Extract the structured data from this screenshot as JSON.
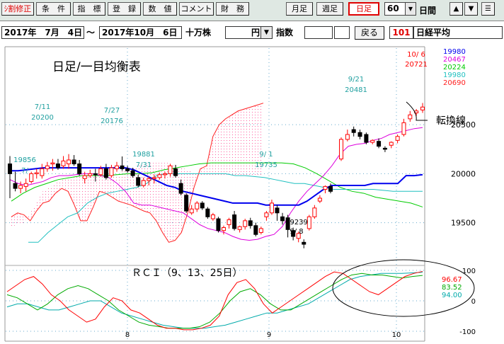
{
  "toolbar": {
    "left_buttons": [
      "ｼ割修正",
      "条　件",
      "指　標",
      "登　録",
      "数　値",
      "コメント",
      "財　務"
    ],
    "period_buttons": [
      "月足",
      "週足",
      "日足"
    ],
    "selected_period": "日足",
    "count_value": "60",
    "count_unit": "日間",
    "up_label": "▲",
    "down_label": "▼",
    "menu_label": "☰"
  },
  "infobar": {
    "start_date": "2017年　7月　4日",
    "tilde": "～",
    "end_date": "2017年10月　6日",
    "unit": "十万株",
    "currency": "円",
    "index_label": "指数",
    "back_button": "戻る",
    "code": "101",
    "name": "日経平均"
  },
  "colors": {
    "up": "#ff0000",
    "down": "#000000",
    "tenkan": "#0000ee",
    "kijun": "#dd00dd",
    "senkou_a": "#ff2020",
    "senkou_b": "#00cc00",
    "chikou": "#20c0c0",
    "cloud": "#ff60a0"
  },
  "chart_data": {
    "type": "candlestick",
    "title": "日足/一目均衡表",
    "price_ticks": [
      "20500",
      "20000",
      "19500"
    ],
    "y_range": [
      19100,
      21180
    ],
    "legend_values": [
      {
        "label": "19980",
        "color": "#0000ee"
      },
      {
        "label": "20467",
        "color": "#dd00dd"
      },
      {
        "label": "20224",
        "color": "#00cc00"
      },
      {
        "label": "19980",
        "color": "#20c0c0"
      },
      {
        "label": "20690",
        "color": "#ff2020"
      }
    ],
    "annotations": [
      {
        "date": "7/11",
        "value": "20200",
        "color": "#20a0a0"
      },
      {
        "date": "7/27",
        "value": "20176",
        "color": "#20a0a0"
      },
      {
        "date": "7/31",
        "value": "19881",
        "color": "#20a0a0"
      },
      {
        "date": "7/",
        "value": "19856",
        "color": "#20a0a0"
      },
      {
        "date": "9/ 1",
        "value": "19735",
        "color": "#20a0a0"
      },
      {
        "date": "9/21",
        "value": "20481",
        "color": "#20a0a0"
      },
      {
        "date": "9/ 8",
        "value": "19239",
        "color": "#000000"
      },
      {
        "date": "10/ 6",
        "value": "20721",
        "color": "#ff0000"
      }
    ],
    "callout": "転換線",
    "x_month_labels": [
      "8",
      "9",
      "10"
    ],
    "candles": [
      [
        20100,
        20000,
        19750,
        20180
      ],
      [
        19900,
        19850,
        19820,
        20020
      ],
      [
        19850,
        19880,
        19800,
        19920
      ],
      [
        19870,
        19900,
        19820,
        19950
      ],
      [
        19920,
        20000,
        19900,
        20020
      ],
      [
        20000,
        20010,
        19950,
        20050
      ],
      [
        19980,
        20050,
        19950,
        20100
      ],
      [
        20050,
        20080,
        20020,
        20120
      ],
      [
        20100,
        20110,
        20030,
        20150
      ],
      [
        20100,
        20060,
        20040,
        20150
      ],
      [
        20080,
        20130,
        20050,
        20180
      ],
      [
        20100,
        20140,
        20050,
        20200
      ],
      [
        20140,
        20100,
        20080,
        20190
      ],
      [
        20100,
        20000,
        19980,
        20140
      ],
      [
        19950,
        19980,
        19900,
        20020
      ],
      [
        19980,
        20000,
        19960,
        20040
      ],
      [
        20000,
        19990,
        19920,
        20050
      ],
      [
        19990,
        20050,
        19970,
        20080
      ],
      [
        20050,
        19960,
        19940,
        20100
      ],
      [
        19980,
        20060,
        19960,
        20090
      ],
      [
        20050,
        20080,
        20020,
        20120
      ],
      [
        20080,
        20050,
        20030,
        20176
      ],
      [
        20050,
        20030,
        20010,
        20080
      ],
      [
        20030,
        19980,
        19960,
        20060
      ],
      [
        19960,
        19881,
        19860,
        19990
      ],
      [
        19880,
        19930,
        19860,
        19960
      ],
      [
        19930,
        19950,
        19880,
        19970
      ],
      [
        19950,
        19960,
        19900,
        19990
      ],
      [
        19960,
        19990,
        19940,
        20010
      ],
      [
        19990,
        20000,
        19950,
        20020
      ],
      [
        20000,
        20080,
        19970,
        20100
      ],
      [
        20050,
        19980,
        19960,
        20090
      ],
      [
        19900,
        19800,
        19780,
        19940
      ],
      [
        19780,
        19620,
        19600,
        19800
      ],
      [
        19600,
        19640,
        19580,
        19680
      ],
      [
        19640,
        19700,
        19610,
        19720
      ],
      [
        19700,
        19650,
        19630,
        19720
      ],
      [
        19640,
        19560,
        19540,
        19660
      ],
      [
        19540,
        19580,
        19520,
        19600
      ],
      [
        19540,
        19420,
        19400,
        19560
      ],
      [
        19420,
        19450,
        19380,
        19470
      ],
      [
        19480,
        19530,
        19440,
        19550
      ],
      [
        19580,
        19440,
        19420,
        19620
      ],
      [
        19430,
        19460,
        19400,
        19470
      ],
      [
        19460,
        19520,
        19430,
        19540
      ],
      [
        19520,
        19470,
        19440,
        19550
      ],
      [
        19470,
        19380,
        19360,
        19500
      ],
      [
        19400,
        19440,
        19380,
        19460
      ],
      [
        19560,
        19600,
        19520,
        19620
      ],
      [
        19600,
        19700,
        19580,
        19735
      ],
      [
        19650,
        19600,
        19520,
        19680
      ],
      [
        19560,
        19520,
        19480,
        19600
      ],
      [
        19550,
        19430,
        19350,
        19580
      ],
      [
        19420,
        19360,
        19320,
        19450
      ],
      [
        19340,
        19390,
        19300,
        19410
      ],
      [
        19300,
        19280,
        19239,
        19330
      ],
      [
        19440,
        19560,
        19420,
        19580
      ],
      [
        19560,
        19650,
        19540,
        19680
      ],
      [
        19720,
        19750,
        19700,
        19780
      ],
      [
        19840,
        19870,
        19800,
        19880
      ],
      [
        19870,
        19820,
        19800,
        19900
      ]
    ],
    "tail_candles": [
      [
        20150,
        20350,
        20130,
        20370
      ],
      [
        20350,
        20400,
        20330,
        20450
      ],
      [
        20450,
        20420,
        20380,
        20481
      ],
      [
        20420,
        20380,
        20350,
        20450
      ],
      [
        20400,
        20320,
        20300,
        20420
      ],
      [
        20320,
        20340,
        20300,
        20350
      ],
      [
        20330,
        20280,
        20260,
        20360
      ],
      [
        20260,
        20250,
        20220,
        20280
      ],
      [
        20290,
        20320,
        20260,
        20330
      ],
      [
        20340,
        20380,
        20310,
        20400
      ],
      [
        20400,
        20520,
        20380,
        20560
      ],
      [
        20560,
        20600,
        20530,
        20640
      ],
      [
        20620,
        20640,
        20590,
        20660
      ],
      [
        20650,
        20680,
        20620,
        20721
      ]
    ],
    "rci": {
      "ticks": [
        "100",
        "0",
        "-100"
      ],
      "title": "ＲＣＩ（9、13、25日）",
      "latest": [
        {
          "label": "96.67",
          "color": "#ff0000"
        },
        {
          "label": "83.52",
          "color": "#00aa00"
        },
        {
          "label": "94.00",
          "color": "#00aaaa"
        }
      ]
    }
  }
}
